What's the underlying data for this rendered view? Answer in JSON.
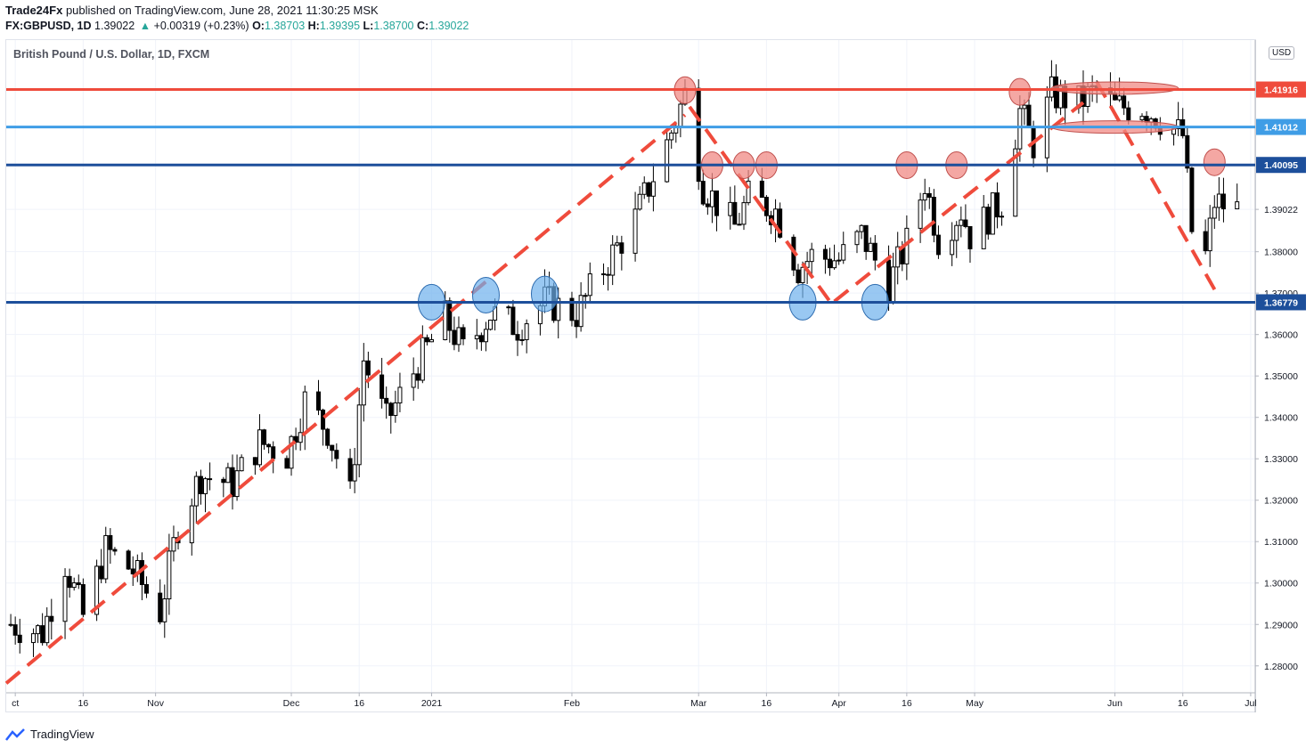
{
  "header": {
    "publisher": "Trade24Fx",
    "published_text": "published on TradingView.com, June 28, 2021 11:30:25 MSK",
    "symbol": "FX:GBPUSD, 1D",
    "last": "1.39022",
    "change": "+0.00319 (+0.23%)",
    "open_label": "O:",
    "open": "1.38703",
    "high_label": "H:",
    "high": "1.39395",
    "low_label": "L:",
    "low": "1.38700",
    "close_label": "C:",
    "close": "1.39022"
  },
  "footer": {
    "brand": "TradingView"
  },
  "currency_badge": "USD",
  "colors": {
    "up_candle": "#ffffff",
    "down_candle": "#000000",
    "resistance": "#ef4b3c",
    "mid_support": "#3f9de6",
    "support": "#1d4f9b",
    "trend_dash": "#ef4b3c",
    "resistance_marker": "#f08a84",
    "support_marker": "#6db1ec"
  },
  "chart_data": {
    "type": "candlestick",
    "title": "British Pound / U.S. Dollar, 1D, FXCM",
    "ylim": [
      1.2735,
      1.4311
    ],
    "xlim": [
      "2020-09-29",
      "2021-07-02"
    ],
    "y_ticks": [
      "1.28000",
      "1.29000",
      "1.30000",
      "1.31000",
      "1.32000",
      "1.33000",
      "1.34000",
      "1.35000",
      "1.36000",
      "1.37000",
      "1.38000",
      "1.39022"
    ],
    "x_ticks": [
      {
        "date": "2020-10-01",
        "label": "ct"
      },
      {
        "date": "2020-10-16",
        "label": "16"
      },
      {
        "date": "2020-11-01",
        "label": "Nov"
      },
      {
        "date": "2020-12-01",
        "label": "Dec"
      },
      {
        "date": "2020-12-16",
        "label": "16"
      },
      {
        "date": "2021-01-01",
        "label": "2021"
      },
      {
        "date": "2021-02-01",
        "label": "Feb"
      },
      {
        "date": "2021-03-01",
        "label": "Mar"
      },
      {
        "date": "2021-03-16",
        "label": "16"
      },
      {
        "date": "2021-04-01",
        "label": "Apr"
      },
      {
        "date": "2021-04-16",
        "label": "16"
      },
      {
        "date": "2021-05-01",
        "label": "May"
      },
      {
        "date": "2021-06-01",
        "label": "Jun"
      },
      {
        "date": "2021-06-16",
        "label": "16"
      },
      {
        "date": "2021-07-01",
        "label": "Jul"
      }
    ],
    "levels": [
      {
        "value": 1.41916,
        "label": "1.41916",
        "color": "#ef4b3c"
      },
      {
        "value": 1.41012,
        "label": "1.41012",
        "color": "#3f9de6"
      },
      {
        "value": 1.40095,
        "label": "1.40095",
        "color": "#1d4f9b"
      },
      {
        "value": 1.36779,
        "label": "1.36779",
        "color": "#1d4f9b"
      }
    ],
    "last_price": {
      "value": 1.39022,
      "label": "1.39022"
    },
    "anchors": [
      [
        "2020-09-30",
        1.29
      ],
      [
        "2020-10-07",
        1.288
      ],
      [
        "2020-10-12",
        1.305
      ],
      [
        "2020-10-16",
        1.292
      ],
      [
        "2020-10-21",
        1.308
      ],
      [
        "2020-10-27",
        1.303
      ],
      [
        "2020-11-02",
        1.293
      ],
      [
        "2020-11-06",
        1.314
      ],
      [
        "2020-11-11",
        1.326
      ],
      [
        "2020-11-18",
        1.324
      ],
      [
        "2020-11-24",
        1.334
      ],
      [
        "2020-11-30",
        1.331
      ],
      [
        "2020-12-04",
        1.344
      ],
      [
        "2020-12-09",
        1.337
      ],
      [
        "2020-12-14",
        1.321
      ],
      [
        "2020-12-17",
        1.354
      ],
      [
        "2020-12-22",
        1.339
      ],
      [
        "2020-12-29",
        1.353
      ],
      [
        "2021-01-04",
        1.364
      ],
      [
        "2021-01-08",
        1.356
      ],
      [
        "2021-01-14",
        1.365
      ],
      [
        "2021-01-20",
        1.362
      ],
      [
        "2021-01-26",
        1.368
      ],
      [
        "2021-02-02",
        1.365
      ],
      [
        "2021-02-08",
        1.376
      ],
      [
        "2021-02-15",
        1.388
      ],
      [
        "2021-02-22",
        1.406
      ],
      [
        "2021-02-26",
        1.418
      ],
      [
        "2021-03-02",
        1.396
      ],
      [
        "2021-03-09",
        1.386
      ],
      [
        "2021-03-12",
        1.393
      ],
      [
        "2021-03-18",
        1.39
      ],
      [
        "2021-03-23",
        1.376
      ],
      [
        "2021-03-26",
        1.379
      ],
      [
        "2021-04-01",
        1.378
      ],
      [
        "2021-04-06",
        1.384
      ],
      [
        "2021-04-12",
        1.372
      ],
      [
        "2021-04-16",
        1.382
      ],
      [
        "2021-04-20",
        1.397
      ],
      [
        "2021-04-23",
        1.383
      ],
      [
        "2021-04-28",
        1.39
      ],
      [
        "2021-04-30",
        1.384
      ],
      [
        "2021-05-07",
        1.392
      ],
      [
        "2021-05-11",
        1.414
      ],
      [
        "2021-05-14",
        1.406
      ],
      [
        "2021-05-18",
        1.418
      ],
      [
        "2021-05-24",
        1.416
      ],
      [
        "2021-05-28",
        1.419
      ],
      [
        "2021-06-01",
        1.415
      ],
      [
        "2021-06-07",
        1.415
      ],
      [
        "2021-06-11",
        1.412
      ],
      [
        "2021-06-16",
        1.408
      ],
      [
        "2021-06-18",
        1.385
      ],
      [
        "2021-06-21",
        1.379
      ],
      [
        "2021-06-23",
        1.392
      ],
      [
        "2021-06-28",
        1.3902
      ]
    ],
    "trend_lines": [
      [
        [
          "2020-09-29",
          1.2758
        ],
        [
          "2021-02-26",
          1.413
        ]
      ],
      [
        [
          "2021-02-27",
          1.415
        ],
        [
          "2021-03-30",
          1.368
        ]
      ],
      [
        [
          "2021-03-31",
          1.368
        ],
        [
          "2021-05-25",
          1.416
        ]
      ],
      [
        [
          "2021-05-28",
          1.421
        ],
        [
          "2021-06-24",
          1.369
        ]
      ]
    ],
    "resistance_markers": [
      [
        "2021-02-26",
        1.419
      ],
      [
        "2021-03-04",
        1.4009
      ],
      [
        "2021-03-11",
        1.4009
      ],
      [
        "2021-03-16",
        1.4009
      ],
      [
        "2021-04-16",
        1.4009
      ],
      [
        "2021-04-27",
        1.4009
      ],
      [
        "2021-05-11",
        1.4186
      ],
      [
        "2021-06-23",
        1.4016
      ]
    ],
    "support_markers": [
      [
        "2021-01-01",
        1.3678
      ],
      [
        "2021-01-13",
        1.3695
      ],
      [
        "2021-01-26",
        1.3698
      ],
      [
        "2021-03-24",
        1.3678
      ],
      [
        "2021-04-09",
        1.3678
      ]
    ],
    "range_markers": [
      [
        [
          "2021-05-18",
          1.4195
        ],
        [
          "2021-06-15",
          1.4195
        ]
      ],
      [
        [
          "2021-05-18",
          1.4101
        ],
        [
          "2021-06-15",
          1.4101
        ]
      ]
    ]
  }
}
